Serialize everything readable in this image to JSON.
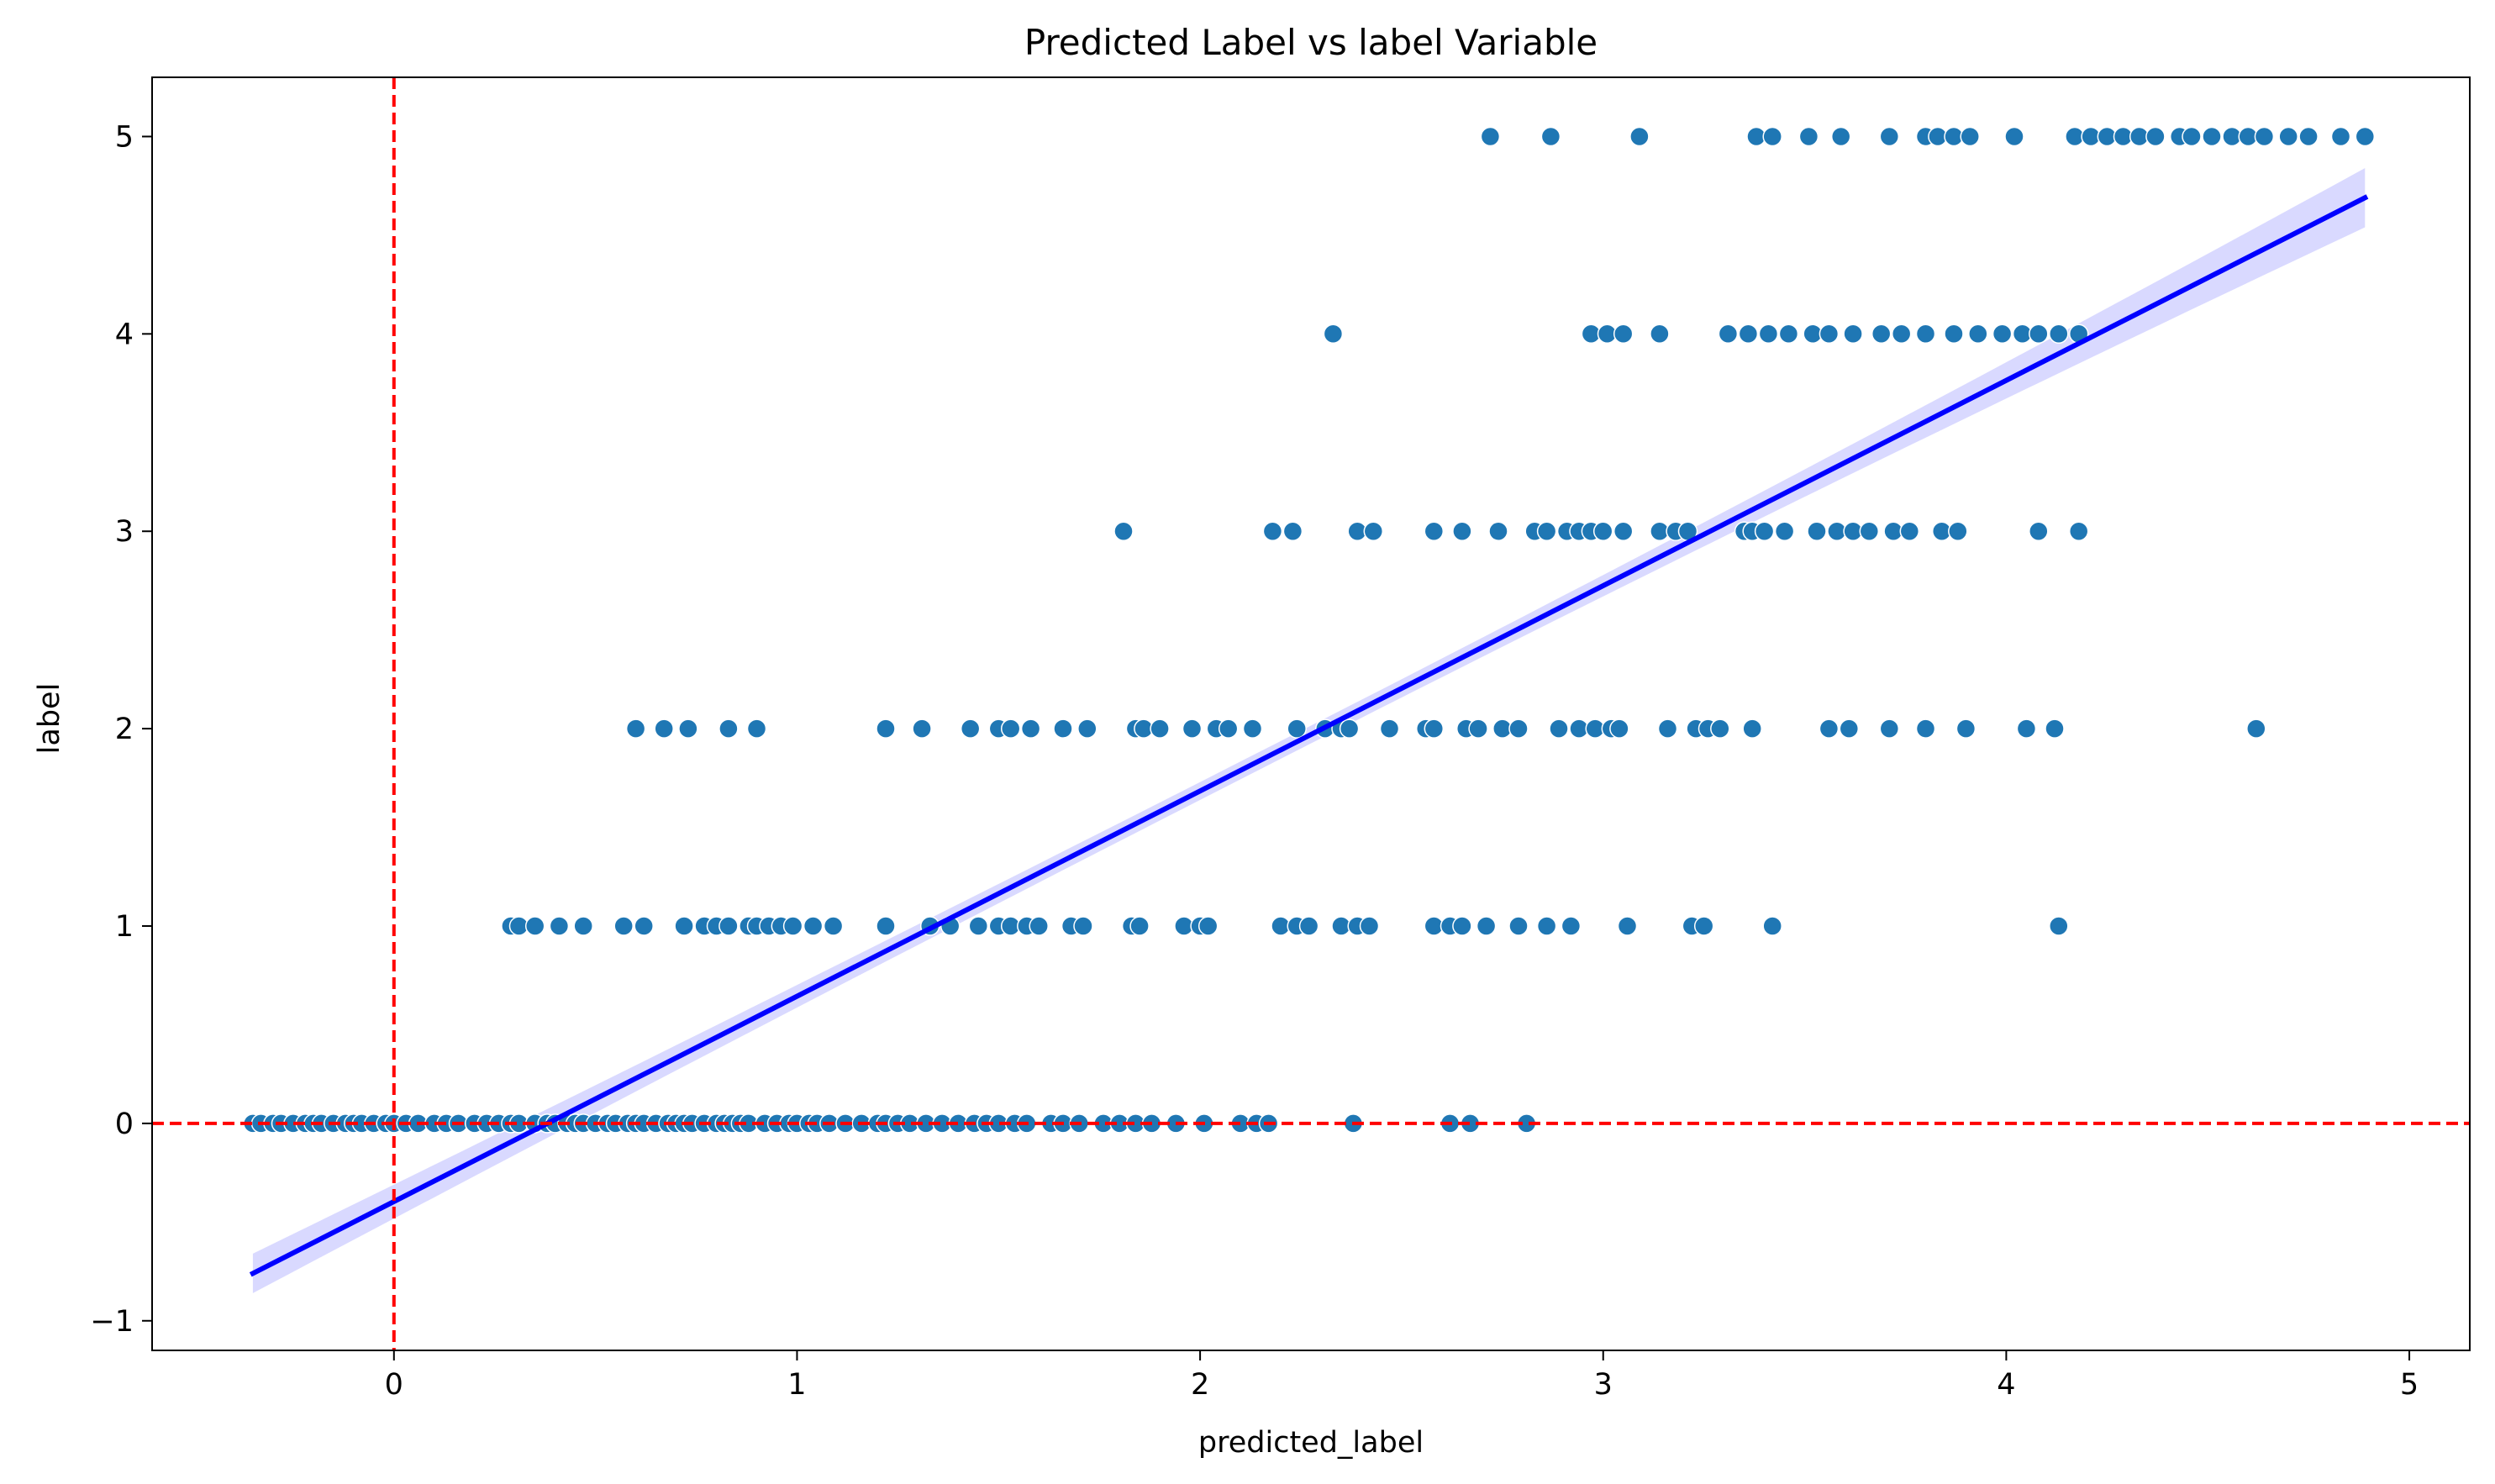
{
  "chart_data": {
    "type": "scatter",
    "title": "Predicted Label vs label Variable",
    "xlabel": "predicted_label",
    "ylabel": "label",
    "xlim": [
      -0.6,
      5.15
    ],
    "ylim": [
      -1.15,
      5.3
    ],
    "xticks": [
      0,
      1,
      2,
      3,
      4,
      5
    ],
    "yticks": [
      -1,
      0,
      1,
      2,
      3,
      4,
      5
    ],
    "xtick_labels": [
      "0",
      "1",
      "2",
      "3",
      "4",
      "5"
    ],
    "ytick_labels": [
      "−1",
      "0",
      "1",
      "2",
      "3",
      "4",
      "5"
    ],
    "grid": false,
    "point_color": "#1f77b4",
    "points_by_label": {
      "0": [
        -0.35,
        -0.33,
        -0.3,
        -0.28,
        -0.25,
        -0.22,
        -0.2,
        -0.18,
        -0.15,
        -0.12,
        -0.1,
        -0.08,
        -0.05,
        -0.02,
        0.0,
        0.03,
        0.06,
        0.1,
        0.13,
        0.16,
        0.2,
        0.23,
        0.26,
        0.29,
        0.31,
        0.35,
        0.38,
        0.4,
        0.43,
        0.45,
        0.47,
        0.5,
        0.53,
        0.55,
        0.58,
        0.6,
        0.62,
        0.65,
        0.68,
        0.7,
        0.72,
        0.74,
        0.77,
        0.8,
        0.82,
        0.84,
        0.86,
        0.88,
        0.92,
        0.95,
        0.98,
        1.0,
        1.03,
        1.05,
        1.08,
        1.12,
        1.16,
        1.2,
        1.22,
        1.25,
        1.28,
        1.32,
        1.36,
        1.4,
        1.44,
        1.47,
        1.5,
        1.54,
        1.57,
        1.63,
        1.66,
        1.7,
        1.76,
        1.8,
        1.84,
        1.88,
        1.94,
        2.01,
        2.1,
        2.14,
        2.17,
        2.38,
        2.62,
        2.67,
        2.81
      ],
      "1": [
        0.29,
        0.31,
        0.35,
        0.41,
        0.47,
        0.57,
        0.62,
        0.72,
        0.77,
        0.8,
        0.83,
        0.88,
        0.9,
        0.93,
        0.96,
        0.99,
        1.04,
        1.09,
        1.22,
        1.33,
        1.38,
        1.45,
        1.5,
        1.53,
        1.57,
        1.6,
        1.68,
        1.71,
        1.83,
        1.85,
        1.96,
        2.0,
        2.02,
        2.2,
        2.24,
        2.27,
        2.35,
        2.39,
        2.42,
        2.58,
        2.62,
        2.65,
        2.71,
        2.79,
        2.86,
        2.92,
        3.06,
        3.22,
        3.25,
        3.42,
        4.13
      ],
      "2": [
        0.6,
        0.67,
        0.73,
        0.83,
        0.9,
        1.22,
        1.31,
        1.43,
        1.5,
        1.53,
        1.58,
        1.66,
        1.72,
        1.84,
        1.86,
        1.9,
        1.98,
        2.04,
        2.07,
        2.13,
        2.24,
        2.31,
        2.35,
        2.37,
        2.47,
        2.56,
        2.58,
        2.66,
        2.69,
        2.75,
        2.79,
        2.89,
        2.94,
        2.98,
        3.02,
        3.04,
        3.16,
        3.23,
        3.26,
        3.29,
        3.37,
        3.56,
        3.61,
        3.71,
        3.8,
        3.9,
        4.05,
        4.12,
        4.62
      ],
      "3": [
        1.81,
        2.18,
        2.23,
        2.39,
        2.43,
        2.58,
        2.65,
        2.74,
        2.83,
        2.86,
        2.91,
        2.94,
        2.97,
        3.0,
        3.05,
        3.14,
        3.18,
        3.21,
        3.35,
        3.37,
        3.4,
        3.45,
        3.53,
        3.58,
        3.62,
        3.66,
        3.72,
        3.76,
        3.84,
        3.88,
        4.08,
        4.18
      ],
      "4": [
        2.33,
        2.97,
        3.01,
        3.05,
        3.14,
        3.31,
        3.36,
        3.41,
        3.46,
        3.52,
        3.56,
        3.62,
        3.69,
        3.74,
        3.8,
        3.87,
        3.93,
        3.99,
        4.04,
        4.08,
        4.13,
        4.18
      ],
      "5": [
        2.72,
        2.87,
        3.09,
        3.38,
        3.42,
        3.51,
        3.59,
        3.71,
        3.8,
        3.83,
        3.87,
        3.91,
        4.02,
        4.17,
        4.21,
        4.25,
        4.29,
        4.33,
        4.37,
        4.43,
        4.46,
        4.51,
        4.56,
        4.6,
        4.64,
        4.7,
        4.75,
        4.83,
        4.89
      ]
    },
    "regression_line": {
      "x": [
        -0.35,
        4.89
      ],
      "y": [
        -0.76,
        4.69
      ],
      "color": "#0000ff"
    },
    "confidence_band": {
      "color": "#0000ff",
      "start_width": 0.1,
      "end_width": 0.15,
      "mid_width": 0.045
    },
    "reference_lines": [
      {
        "orientation": "vertical",
        "value": 0,
        "color": "#ff0000",
        "style": "dashed"
      },
      {
        "orientation": "horizontal",
        "value": 0,
        "color": "#ff0000",
        "style": "dashed"
      }
    ]
  }
}
